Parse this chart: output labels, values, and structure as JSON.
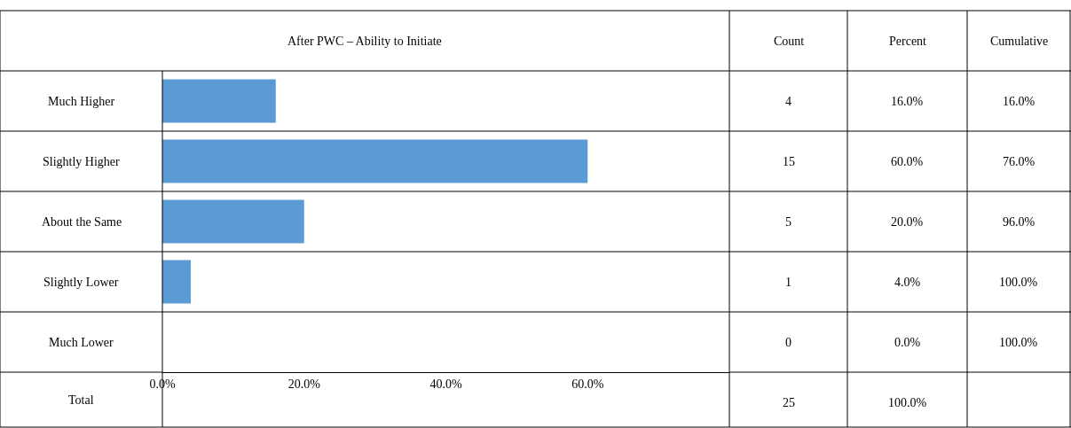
{
  "chart_data": [
    {
      "type": "bar",
      "orientation": "horizontal",
      "title": "After PWC – Ability to Initiate",
      "categories": [
        "Much Higher",
        "Slightly Higher",
        "About the Same",
        "Slightly Lower",
        "Much Lower"
      ],
      "values": [
        16,
        60,
        20,
        4,
        0
      ],
      "color": "#5b9bd5",
      "xlim": [
        0,
        80
      ],
      "xticks": [
        {
          "value": 0,
          "label": "0.0%"
        },
        {
          "value": 20,
          "label": "20.0%"
        },
        {
          "value": 40,
          "label": "40.0%"
        },
        {
          "value": 60,
          "label": "60.0%"
        }
      ],
      "annotations": [
        "Total"
      ]
    },
    {
      "type": "other",
      "title": "Count",
      "annotations": [
        "4",
        "15",
        "5",
        "1",
        "0",
        "25"
      ]
    },
    {
      "type": "other",
      "title": "Percent",
      "annotations": [
        "16.0%",
        "60.0%",
        "20.0%",
        "4.0%",
        "0.0%",
        "100.0%"
      ]
    },
    {
      "type": "other",
      "title": "Cumulative",
      "annotations": [
        "16.0%",
        "76.0%",
        "96.0%",
        "100.0%",
        "100.0%"
      ]
    }
  ]
}
